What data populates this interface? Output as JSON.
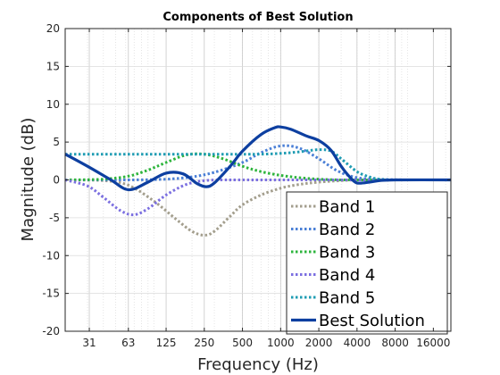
{
  "chart_data": {
    "type": "line",
    "title": "Components of Best Solution",
    "xlabel": "Frequency (Hz)",
    "ylabel": "Magnitude (dB)",
    "x_scale": "log2",
    "xlim": [
      20,
      22000
    ],
    "ylim": [
      -20,
      20
    ],
    "x_ticks": [
      31,
      63,
      125,
      250,
      500,
      1000,
      2000,
      4000,
      8000,
      16000
    ],
    "x_tick_labels": [
      "31",
      "63",
      "125",
      "250",
      "500",
      "1000",
      "2000",
      "4000",
      "8000",
      "16000"
    ],
    "y_ticks": [
      -20,
      -15,
      -10,
      -5,
      0,
      5,
      10,
      15,
      20
    ],
    "grid": true,
    "legend_position": "bottom-right",
    "series": [
      {
        "name": "Band 1",
        "color": "#a39e8d",
        "style": "dotted",
        "x": [
          20,
          40,
          63,
          100,
          150,
          200,
          250,
          300,
          400,
          500,
          700,
          1000,
          1400,
          2000,
          3000,
          4000,
          6000,
          10000,
          22000
        ],
        "y": [
          0,
          -0.1,
          -0.7,
          -2.8,
          -5.2,
          -6.8,
          -7.3,
          -6.8,
          -4.8,
          -3.3,
          -2.0,
          -1.1,
          -0.6,
          -0.3,
          -0.1,
          0,
          0,
          0,
          0
        ]
      },
      {
        "name": "Band 2",
        "color": "#4a7fd6",
        "style": "dotted",
        "x": [
          20,
          63,
          125,
          200,
          300,
          500,
          700,
          1000,
          1400,
          2000,
          2800,
          4000,
          6000,
          10000,
          22000
        ],
        "y": [
          0,
          0,
          0.1,
          0.4,
          1.0,
          2.3,
          3.6,
          4.5,
          4.2,
          2.8,
          1.2,
          0.3,
          0.1,
          0,
          0
        ]
      },
      {
        "name": "Band 3",
        "color": "#2db43c",
        "style": "dotted",
        "x": [
          20,
          40,
          63,
          90,
          125,
          180,
          250,
          350,
          500,
          700,
          1000,
          1400,
          2000,
          3000,
          4000,
          6000,
          10000,
          22000
        ],
        "y": [
          0,
          0.1,
          0.5,
          1.3,
          2.3,
          3.3,
          3.4,
          2.8,
          1.8,
          1.1,
          0.6,
          0.3,
          0.1,
          0,
          0,
          0,
          0,
          0
        ]
      },
      {
        "name": "Band 4",
        "color": "#7b6fe0",
        "style": "dotted",
        "x": [
          20,
          30,
          40,
          55,
          70,
          90,
          125,
          180,
          250,
          350,
          500,
          1000,
          2000,
          4000,
          8000,
          22000
        ],
        "y": [
          0,
          -0.8,
          -2.3,
          -4.1,
          -4.6,
          -3.8,
          -2.0,
          -0.6,
          -0.1,
          0,
          0,
          0,
          0,
          0,
          0,
          0
        ]
      },
      {
        "name": "Band 5",
        "color": "#1f9cb3",
        "style": "dotted",
        "x": [
          20,
          63,
          125,
          250,
          500,
          700,
          1000,
          1400,
          2000,
          2500,
          3000,
          4000,
          5000,
          6000,
          8000,
          22000
        ],
        "y": [
          3.4,
          3.4,
          3.4,
          3.4,
          3.4,
          3.4,
          3.5,
          3.7,
          4.0,
          3.8,
          2.8,
          1.1,
          0.4,
          0.1,
          0,
          0
        ]
      },
      {
        "name": "Best Solution",
        "color": "#0d3fa0",
        "style": "solid",
        "x": [
          20,
          30,
          45,
          63,
          90,
          125,
          170,
          220,
          260,
          300,
          400,
          500,
          700,
          900,
          1000,
          1200,
          1600,
          2000,
          2500,
          3000,
          3500,
          4000,
          5000,
          6000,
          8000,
          22000
        ],
        "y": [
          3.4,
          1.8,
          0.1,
          -1.3,
          -0.3,
          0.9,
          0.8,
          -0.5,
          -0.9,
          -0.4,
          1.8,
          3.8,
          6.0,
          6.9,
          7.0,
          6.7,
          5.8,
          5.2,
          3.9,
          1.8,
          0.4,
          -0.4,
          -0.3,
          -0.1,
          0,
          0
        ]
      }
    ]
  }
}
